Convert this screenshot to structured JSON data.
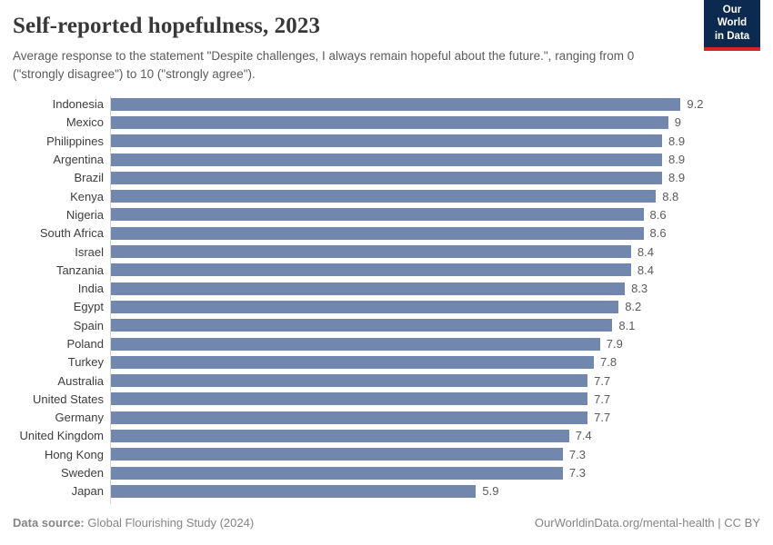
{
  "header": {
    "title": "Self-reported hopefulness, 2023",
    "subtitle": "Average response to the statement \"Despite challenges, I always remain hopeful about the future.\", ranging from 0 (\"strongly disagree\") to 10 (\"strongly agree\").",
    "logo": {
      "line1": "Our World",
      "line2": "in Data"
    }
  },
  "chart_data": {
    "type": "bar",
    "orientation": "horizontal",
    "title": "Self-reported hopefulness, 2023",
    "xlabel": "",
    "ylabel": "",
    "xlim": [
      0,
      9.2
    ],
    "grid": false,
    "legend": "none",
    "value_label_position": "end-of-bar",
    "categories": [
      "Indonesia",
      "Mexico",
      "Philippines",
      "Argentina",
      "Brazil",
      "Kenya",
      "Nigeria",
      "South Africa",
      "Israel",
      "Tanzania",
      "India",
      "Egypt",
      "Spain",
      "Poland",
      "Turkey",
      "Australia",
      "United States",
      "Germany",
      "United Kingdom",
      "Hong Kong",
      "Sweden",
      "Japan"
    ],
    "values": [
      9.2,
      9,
      8.9,
      8.9,
      8.9,
      8.8,
      8.6,
      8.6,
      8.4,
      8.4,
      8.3,
      8.2,
      8.1,
      7.9,
      7.8,
      7.7,
      7.7,
      7.7,
      7.4,
      7.3,
      7.3,
      5.9
    ],
    "value_labels": [
      "9.2",
      "9",
      "8.9",
      "8.9",
      "8.9",
      "8.8",
      "8.6",
      "8.6",
      "8.4",
      "8.4",
      "8.3",
      "8.2",
      "8.1",
      "7.9",
      "7.8",
      "7.7",
      "7.7",
      "7.7",
      "7.4",
      "7.3",
      "7.3",
      "5.9"
    ]
  },
  "footer": {
    "source_label": "Data source:",
    "source_text": " Global Flourishing Study (2024)",
    "right_text": "OurWorldinData.org/mental-health | CC BY"
  },
  "colors": {
    "bar": "#7287ad",
    "title_text": "#383838",
    "muted_text": "#5b5b5b",
    "country_text": "#3d3d3d",
    "footer_text": "#858585",
    "logo_background": "#0c2a50",
    "logo_red": "#d3262a",
    "axis_line": "#d4d4d4"
  }
}
